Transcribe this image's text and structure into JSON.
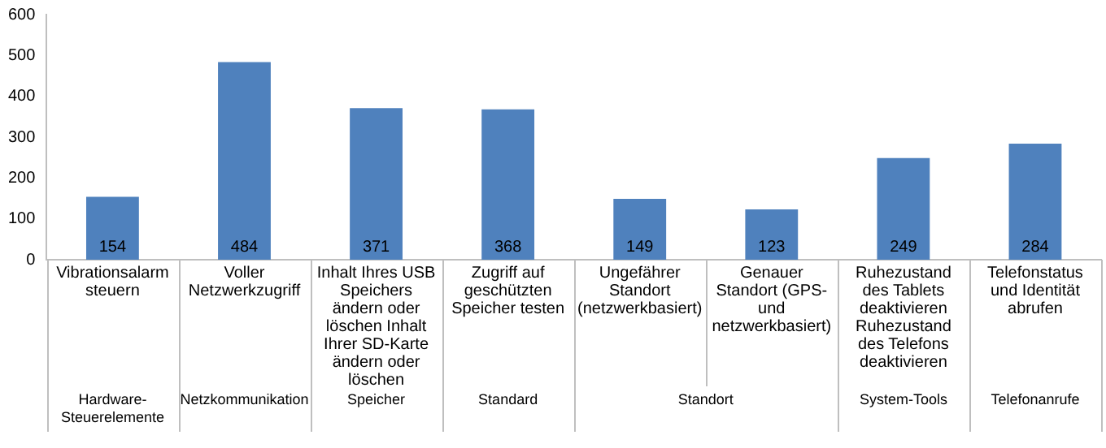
{
  "chart_data": {
    "type": "bar",
    "categories": [
      "Vibrationsalarm steuern",
      "Voller Netzwerkzugriff",
      "Inhalt Ihres USB Speichers ändern oder löschen Inhalt Ihrer SD-Karte ändern oder löschen",
      "Zugriff auf geschützten Speicher testen",
      "Ungefährer Standort (netzwerkbasiert)",
      "Genauer Standort (GPS- und netzwerkbasiert)",
      "Ruhezustand des Tablets deaktivieren Ruhezustand des Telefons deaktivieren",
      "Telefonstatus und Identität abrufen"
    ],
    "values": [
      154,
      484,
      371,
      368,
      149,
      123,
      249,
      284
    ],
    "color": "#4f81bd",
    "ylim": [
      0,
      600
    ],
    "yticks": [
      0,
      100,
      200,
      300,
      400,
      500,
      600
    ],
    "grid": false,
    "legend": false,
    "data_labels": true,
    "annotations": [
      "Hardware-Steuerelemente",
      "Netzkommunikation",
      "Speicher",
      "Standard",
      "Standort",
      "System-Tools",
      "Telefonanrufe"
    ]
  }
}
